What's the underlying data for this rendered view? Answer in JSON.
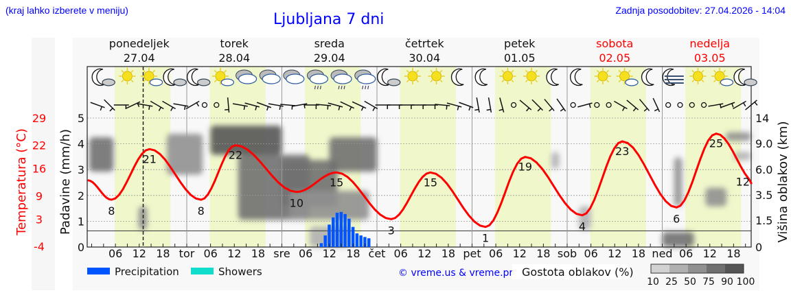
{
  "header": {
    "hint": "(kraj lahko izberete v meniju)",
    "title": "Ljubljana 7 dni",
    "updated": "Zadnja posodobitev: 27.04.2026 - 14:04"
  },
  "days": [
    {
      "name": "ponedeljek",
      "date": "27.04",
      "weekend": false
    },
    {
      "name": "torek",
      "date": "28.04",
      "weekend": false
    },
    {
      "name": "sreda",
      "date": "29.04",
      "weekend": false
    },
    {
      "name": "četrtek",
      "date": "30.04",
      "weekend": false
    },
    {
      "name": "petek",
      "date": "01.05",
      "weekend": false
    },
    {
      "name": "sobota",
      "date": "02.05",
      "weekend": true
    },
    {
      "name": "nedelja",
      "date": "03.05",
      "weekend": true
    }
  ],
  "colors": {
    "temperature": "#ff0000",
    "precipitation": "#0055ff",
    "showers": "#11ddcc",
    "daylight": "#f0f7cb",
    "plot_bg": "#f8f8f8",
    "link": "#0000ff",
    "cloud_shades": [
      "#d2d2d2",
      "#b0b0b0",
      "#909090",
      "#707070",
      "#555555"
    ]
  },
  "footer": {
    "copyright": "© vreme.us & vreme.pro",
    "cloud_legend_title": "Gostota oblakov (%)",
    "cloud_legend_ticks": [
      "10",
      "25",
      "50",
      "75",
      "90",
      "100"
    ]
  },
  "chart_data": {
    "type": "meteogram",
    "x_unit": "hours from Monday 27.04 00:00",
    "x_tick_labels": [
      "06",
      "12",
      "18"
    ],
    "day_abbrev": [
      "tor",
      "sre",
      "čet",
      "pet",
      "sob",
      "ned"
    ],
    "now_marker": "27.04 14:04",
    "left_axis_temp": {
      "label": "Temperatura (°C)",
      "ticks": [
        29,
        22,
        16,
        9,
        3,
        -4
      ],
      "range": [
        -4,
        29
      ]
    },
    "left_axis_precip": {
      "label": "Padavine (mm/h)",
      "ticks": [
        0,
        1,
        2,
        3,
        4,
        5
      ],
      "range": [
        0,
        5
      ]
    },
    "right_axis_cloud": {
      "label": "Višina oblakov (km)",
      "ticks": [
        "0",
        "1.5",
        "3.5",
        "6.0",
        "9.0",
        "14"
      ]
    },
    "temperature": {
      "points": [
        [
          -1,
          13
        ],
        [
          5,
          8
        ],
        [
          14.6,
          21
        ],
        [
          27.6,
          8
        ],
        [
          36.3,
          22
        ],
        [
          51.7,
          10
        ],
        [
          61.8,
          15
        ],
        [
          75.6,
          3
        ],
        [
          85.5,
          15
        ],
        [
          99.4,
          1
        ],
        [
          109.4,
          19
        ],
        [
          123.8,
          4
        ],
        [
          133.9,
          23
        ],
        [
          147.6,
          6
        ],
        [
          157.6,
          25
        ],
        [
          168,
          12
        ]
      ],
      "labels": [
        [
          5,
          8
        ],
        [
          14.6,
          21
        ],
        [
          27.6,
          8
        ],
        [
          36.3,
          22
        ],
        [
          51.7,
          10
        ],
        [
          61.8,
          15
        ],
        [
          75.6,
          3
        ],
        [
          85.5,
          15
        ],
        [
          99.4,
          1
        ],
        [
          109.4,
          19
        ],
        [
          123.8,
          4
        ],
        [
          133.9,
          23
        ],
        [
          147.6,
          6
        ],
        [
          157.6,
          25
        ],
        [
          168,
          12
        ]
      ]
    },
    "precipitation": {
      "name": "Precipitation",
      "hours": [
        58,
        59,
        60,
        61,
        62,
        63,
        64,
        65,
        66,
        67,
        68,
        69,
        70
      ],
      "values": [
        0.15,
        0.45,
        0.87,
        1.15,
        1.33,
        1.36,
        1.28,
        1.1,
        0.78,
        0.53,
        0.45,
        0.39,
        0.34
      ]
    },
    "showers": {
      "name": "Showers",
      "hours": [],
      "values": []
    },
    "daylight": [
      [
        5.8,
        19.9
      ],
      [
        29.8,
        43.9
      ],
      [
        53.8,
        67.9
      ],
      [
        77.8,
        91.9
      ],
      [
        101.8,
        115.9
      ],
      [
        125.8,
        139.9
      ],
      [
        149.8,
        163.9
      ]
    ],
    "cloud_density": [
      {
        "h": [
          -0.6,
          5.5
        ],
        "km": [
          5.8,
          10.2
        ],
        "pct": 75
      },
      {
        "h": [
          11.8,
          14
        ],
        "km": [
          0.96,
          2.6
        ],
        "pct": 50
      },
      {
        "h": [
          19,
          28
        ],
        "km": [
          5.5,
          10.9
        ],
        "pct": 60
      },
      {
        "h": [
          30,
          48
        ],
        "km": [
          7.7,
          12.5
        ],
        "pct": 90
      },
      {
        "h": [
          37,
          55
        ],
        "km": [
          1.55,
          7.7
        ],
        "pct": 75
      },
      {
        "h": [
          48,
          62
        ],
        "km": [
          2.6,
          7.1
        ],
        "pct": 80
      },
      {
        "h": [
          60,
          72
        ],
        "km": [
          5.8,
          10.2
        ],
        "pct": 85
      },
      {
        "h": [
          50,
          70
        ],
        "km": [
          1.55,
          3.9
        ],
        "pct": 50
      },
      {
        "h": [
          55,
          65
        ],
        "km": [
          0,
          1.15
        ],
        "pct": 25
      },
      {
        "h": [
          116,
          118
        ],
        "km": [
          6.1,
          8.0
        ],
        "pct": 25
      },
      {
        "h": [
          123,
          126
        ],
        "km": [
          0.96,
          2.6
        ],
        "pct": 25
      },
      {
        "h": [
          147,
          149
        ],
        "km": [
          2.6,
          7.4
        ],
        "pct": 60
      },
      {
        "h": [
          144,
          152
        ],
        "km": [
          0,
          0.85
        ],
        "pct": 75
      },
      {
        "h": [
          154.9,
          160.2
        ],
        "km": [
          2.6,
          4.2
        ],
        "pct": 60
      },
      {
        "h": [
          160,
          168
        ],
        "km": [
          9.5,
          11.2
        ],
        "pct": 60
      },
      {
        "h": [
          162,
          168
        ],
        "km": [
          7.1,
          8.0
        ],
        "pct": 25
      }
    ],
    "weather_icons": [
      "moon-cloud",
      "sun",
      "sun-cloud",
      "moon-cloud",
      "moon-cloud",
      "sun-cloud",
      "cloud",
      "cloud",
      "cloud",
      "rain-cloud",
      "rain-cloud",
      "rain-cloud",
      "moon-cloud",
      "sun",
      "sun",
      "moon",
      "moon",
      "sun",
      "sun",
      "moon",
      "moon",
      "sun",
      "sun-cloud",
      "moon",
      "fog-moon",
      "sun",
      "sun-cloud",
      "moon-cloud"
    ],
    "wind_barbs_staff_angle": [
      20,
      45,
      0,
      -25,
      10,
      30,
      30,
      10,
      -30,
      null,
      null,
      85,
      10,
      15,
      20,
      10,
      5,
      -10,
      0,
      5,
      15,
      25,
      25,
      30,
      0,
      0,
      0,
      0,
      0,
      5,
      15,
      20,
      80,
      80,
      75,
      null,
      40,
      45,
      50,
      55,
      null,
      -15,
      null,
      null,
      30,
      40,
      50,
      65,
      null,
      null,
      null,
      null,
      -10,
      -20,
      -30,
      -40
    ]
  }
}
